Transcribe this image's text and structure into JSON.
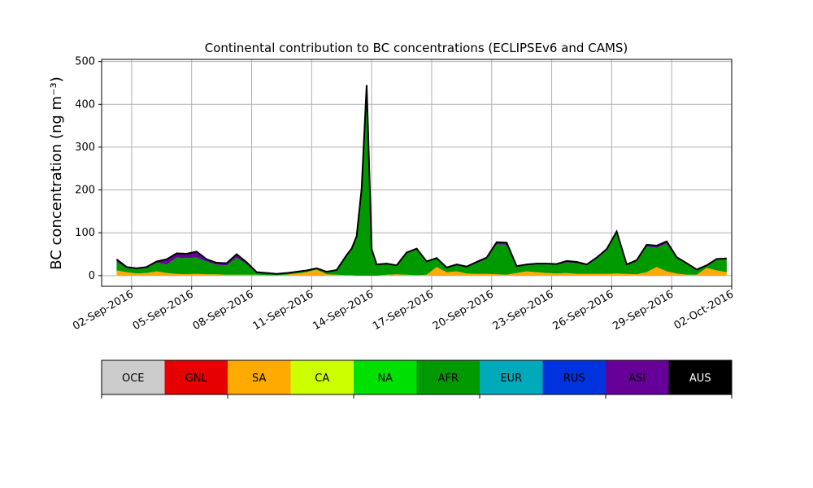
{
  "chart_data": {
    "type": "area",
    "stacked": true,
    "title": "Continental contribution to BC concentrations (ECLIPSEv6 and CAMS)",
    "xlabel": "",
    "ylabel": "BC concentration (ng m⁻³)",
    "ylim": [
      -25,
      505
    ],
    "xlim": [
      "2016-08-31T12:00",
      "2016-10-02T00:00"
    ],
    "grid": true,
    "yticks": [
      0,
      100,
      200,
      300,
      400,
      500
    ],
    "xticks": [
      {
        "date": "2016-09-02",
        "label": "02-Sep-2016"
      },
      {
        "date": "2016-09-05",
        "label": "05-Sep-2016"
      },
      {
        "date": "2016-09-08",
        "label": "08-Sep-2016"
      },
      {
        "date": "2016-09-11",
        "label": "11-Sep-2016"
      },
      {
        "date": "2016-09-14",
        "label": "14-Sep-2016"
      },
      {
        "date": "2016-09-17",
        "label": "17-Sep-2016"
      },
      {
        "date": "2016-09-20",
        "label": "20-Sep-2016"
      },
      {
        "date": "2016-09-23",
        "label": "23-Sep-2016"
      },
      {
        "date": "2016-09-26",
        "label": "26-Sep-2016"
      },
      {
        "date": "2016-09-29",
        "label": "29-Sep-2016"
      },
      {
        "date": "2016-10-02",
        "label": "02-Oct-2016"
      }
    ],
    "legend_position": "bottom colorbar",
    "x": [
      "2016-09-01T06:00",
      "2016-09-01T18:00",
      "2016-09-02T06:00",
      "2016-09-02T18:00",
      "2016-09-03T06:00",
      "2016-09-03T18:00",
      "2016-09-04T06:00",
      "2016-09-04T18:00",
      "2016-09-05T06:00",
      "2016-09-05T18:00",
      "2016-09-06T06:00",
      "2016-09-06T18:00",
      "2016-09-07T06:00",
      "2016-09-07T18:00",
      "2016-09-08T06:00",
      "2016-09-08T18:00",
      "2016-09-09T06:00",
      "2016-09-09T18:00",
      "2016-09-10T06:00",
      "2016-09-10T18:00",
      "2016-09-11T06:00",
      "2016-09-11T18:00",
      "2016-09-12T06:00",
      "2016-09-12T18:00",
      "2016-09-13T00:00",
      "2016-09-13T06:00",
      "2016-09-13T12:00",
      "2016-09-13T18:00",
      "2016-09-14T00:00",
      "2016-09-14T06:00",
      "2016-09-14T18:00",
      "2016-09-15T06:00",
      "2016-09-15T18:00",
      "2016-09-16T06:00",
      "2016-09-16T18:00",
      "2016-09-17T06:00",
      "2016-09-17T18:00",
      "2016-09-18T06:00",
      "2016-09-18T18:00",
      "2016-09-19T06:00",
      "2016-09-19T18:00",
      "2016-09-20T06:00",
      "2016-09-20T18:00",
      "2016-09-21T06:00",
      "2016-09-21T18:00",
      "2016-09-22T06:00",
      "2016-09-22T18:00",
      "2016-09-23T06:00",
      "2016-09-23T18:00",
      "2016-09-24T06:00",
      "2016-09-24T18:00",
      "2016-09-25T06:00",
      "2016-09-25T18:00",
      "2016-09-26T06:00",
      "2016-09-26T18:00",
      "2016-09-27T06:00",
      "2016-09-27T18:00",
      "2016-09-28T06:00",
      "2016-09-28T18:00",
      "2016-09-29T06:00",
      "2016-09-29T18:00",
      "2016-09-30T06:00",
      "2016-09-30T18:00",
      "2016-10-01T06:00",
      "2016-10-01T18:00"
    ],
    "series": [
      {
        "name": "OCE",
        "color": "#cccccc",
        "values": [
          0,
          0,
          0,
          0,
          0,
          0,
          0,
          0,
          0,
          0,
          0,
          0,
          0,
          0,
          0,
          0,
          0,
          0,
          0,
          0,
          0,
          0,
          0,
          0,
          0,
          0,
          0,
          0,
          0,
          0,
          0,
          0,
          0,
          0,
          0,
          0,
          0,
          0,
          0,
          0,
          0,
          0,
          0,
          0,
          0,
          0,
          0,
          0,
          0,
          0,
          0,
          0,
          0,
          0,
          0,
          0,
          0,
          0,
          0,
          0,
          0,
          0,
          0,
          0,
          0
        ]
      },
      {
        "name": "GNL",
        "color": "#e60000",
        "values": [
          0,
          0,
          0,
          0,
          0,
          0,
          0,
          0,
          0,
          0,
          0,
          0,
          0,
          0,
          0,
          0,
          0,
          0,
          0,
          0,
          0,
          0,
          0,
          0,
          0,
          0,
          0,
          0,
          0,
          0,
          0,
          0,
          0,
          0,
          0,
          0,
          0,
          0,
          0,
          0,
          0,
          0,
          0,
          0,
          0,
          0,
          0,
          0,
          0,
          0,
          0,
          0,
          0,
          0,
          0,
          0,
          0,
          0,
          0,
          0,
          0,
          0,
          0,
          0,
          0
        ]
      },
      {
        "name": "SA",
        "color": "#ffaa00",
        "values": [
          12,
          8,
          5,
          6,
          10,
          6,
          4,
          3,
          4,
          3,
          3,
          2,
          2,
          2,
          2,
          1,
          1,
          2,
          5,
          8,
          14,
          3,
          2,
          1,
          1,
          0,
          0,
          0,
          0,
          0,
          2,
          3,
          2,
          1,
          2,
          20,
          8,
          10,
          5,
          4,
          4,
          3,
          2,
          6,
          10,
          8,
          6,
          5,
          6,
          4,
          4,
          4,
          4,
          5,
          4,
          3,
          8,
          20,
          10,
          5,
          2,
          2,
          18,
          12,
          8
        ]
      },
      {
        "name": "CA",
        "color": "#ccff00",
        "values": [
          0,
          0,
          0,
          0,
          0,
          0,
          0,
          0,
          0,
          0,
          0,
          0,
          0,
          0,
          0,
          0,
          0,
          0,
          0,
          0,
          0,
          0,
          0,
          0,
          0,
          0,
          0,
          0,
          0,
          0,
          0,
          0,
          0,
          0,
          0,
          0,
          0,
          0,
          0,
          0,
          0,
          0,
          0,
          0,
          0,
          0,
          0,
          0,
          0,
          0,
          0,
          0,
          0,
          0,
          0,
          0,
          0,
          0,
          0,
          0,
          0,
          0,
          0,
          0,
          0
        ]
      },
      {
        "name": "NA",
        "color": "#00e000",
        "values": [
          0,
          0,
          0,
          0,
          0,
          0,
          0,
          0,
          0,
          0,
          0,
          0,
          0,
          0,
          0,
          0,
          0,
          0,
          0,
          0,
          0,
          0,
          0,
          0,
          0,
          0,
          0,
          0,
          0,
          0,
          0,
          0,
          0,
          0,
          0,
          0,
          0,
          0,
          0,
          0,
          0,
          0,
          0,
          0,
          0,
          0,
          0,
          0,
          0,
          0,
          0,
          0,
          0,
          0,
          0,
          0,
          0,
          0,
          0,
          0,
          0,
          0,
          0,
          0,
          0
        ]
      },
      {
        "name": "AFR",
        "color": "#009900",
        "values": [
          20,
          10,
          10,
          12,
          20,
          20,
          38,
          38,
          38,
          30,
          22,
          22,
          40,
          25,
          4,
          3,
          2,
          3,
          3,
          3,
          2,
          5,
          10,
          45,
          60,
          90,
          200,
          440,
          60,
          25,
          25,
          20,
          50,
          60,
          30,
          20,
          10,
          15,
          15,
          25,
          35,
          70,
          70,
          15,
          15,
          18,
          20,
          20,
          25,
          25,
          20,
          35,
          55,
          95,
          20,
          30,
          60,
          45,
          65,
          35,
          25,
          10,
          5,
          25,
          30
        ]
      },
      {
        "name": "EUR",
        "color": "#00aabb",
        "values": [
          0,
          0,
          0,
          0,
          0,
          0,
          0,
          0,
          0,
          0,
          0,
          0,
          0,
          0,
          0,
          0,
          0,
          0,
          0,
          0,
          0,
          0,
          0,
          0,
          0,
          0,
          0,
          0,
          0,
          0,
          0,
          0,
          0,
          0,
          0,
          0,
          0,
          0,
          0,
          0,
          0,
          0,
          0,
          0,
          0,
          0,
          0,
          0,
          0,
          0,
          0,
          0,
          0,
          0,
          0,
          0,
          0,
          0,
          0,
          0,
          0,
          0,
          0,
          0,
          0
        ]
      },
      {
        "name": "RUS",
        "color": "#0033dd",
        "values": [
          0,
          0,
          0,
          0,
          0,
          0,
          0,
          0,
          0,
          0,
          0,
          0,
          0,
          0,
          0,
          0,
          0,
          0,
          0,
          0,
          0,
          0,
          0,
          0,
          0,
          0,
          0,
          0,
          0,
          0,
          0,
          0,
          0,
          0,
          0,
          0,
          0,
          0,
          0,
          0,
          0,
          0,
          0,
          0,
          0,
          0,
          0,
          0,
          0,
          0,
          0,
          0,
          0,
          0,
          0,
          0,
          0,
          0,
          0,
          0,
          0,
          0,
          0,
          0,
          0
        ]
      },
      {
        "name": "ASI",
        "color": "#660099",
        "values": [
          6,
          2,
          2,
          2,
          3,
          12,
          10,
          10,
          14,
          5,
          5,
          5,
          8,
          4,
          2,
          2,
          1,
          1,
          1,
          1,
          1,
          1,
          1,
          2,
          2,
          2,
          4,
          5,
          2,
          1,
          1,
          1,
          2,
          2,
          1,
          1,
          1,
          1,
          1,
          3,
          3,
          5,
          5,
          1,
          1,
          2,
          2,
          2,
          3,
          3,
          2,
          3,
          3,
          3,
          2,
          3,
          4,
          5,
          5,
          3,
          2,
          2,
          1,
          2,
          2
        ]
      },
      {
        "name": "AUS",
        "color": "#000000",
        "values": [
          0,
          0,
          0,
          0,
          0,
          0,
          0,
          0,
          0,
          0,
          0,
          0,
          0,
          0,
          0,
          0,
          0,
          0,
          0,
          0,
          0,
          0,
          0,
          0,
          0,
          0,
          0,
          0,
          0,
          0,
          0,
          0,
          0,
          0,
          0,
          0,
          0,
          0,
          0,
          0,
          0,
          0,
          0,
          0,
          0,
          0,
          0,
          0,
          0,
          0,
          0,
          0,
          0,
          0,
          0,
          0,
          0,
          0,
          0,
          0,
          0,
          0,
          0,
          0,
          0
        ]
      }
    ]
  }
}
